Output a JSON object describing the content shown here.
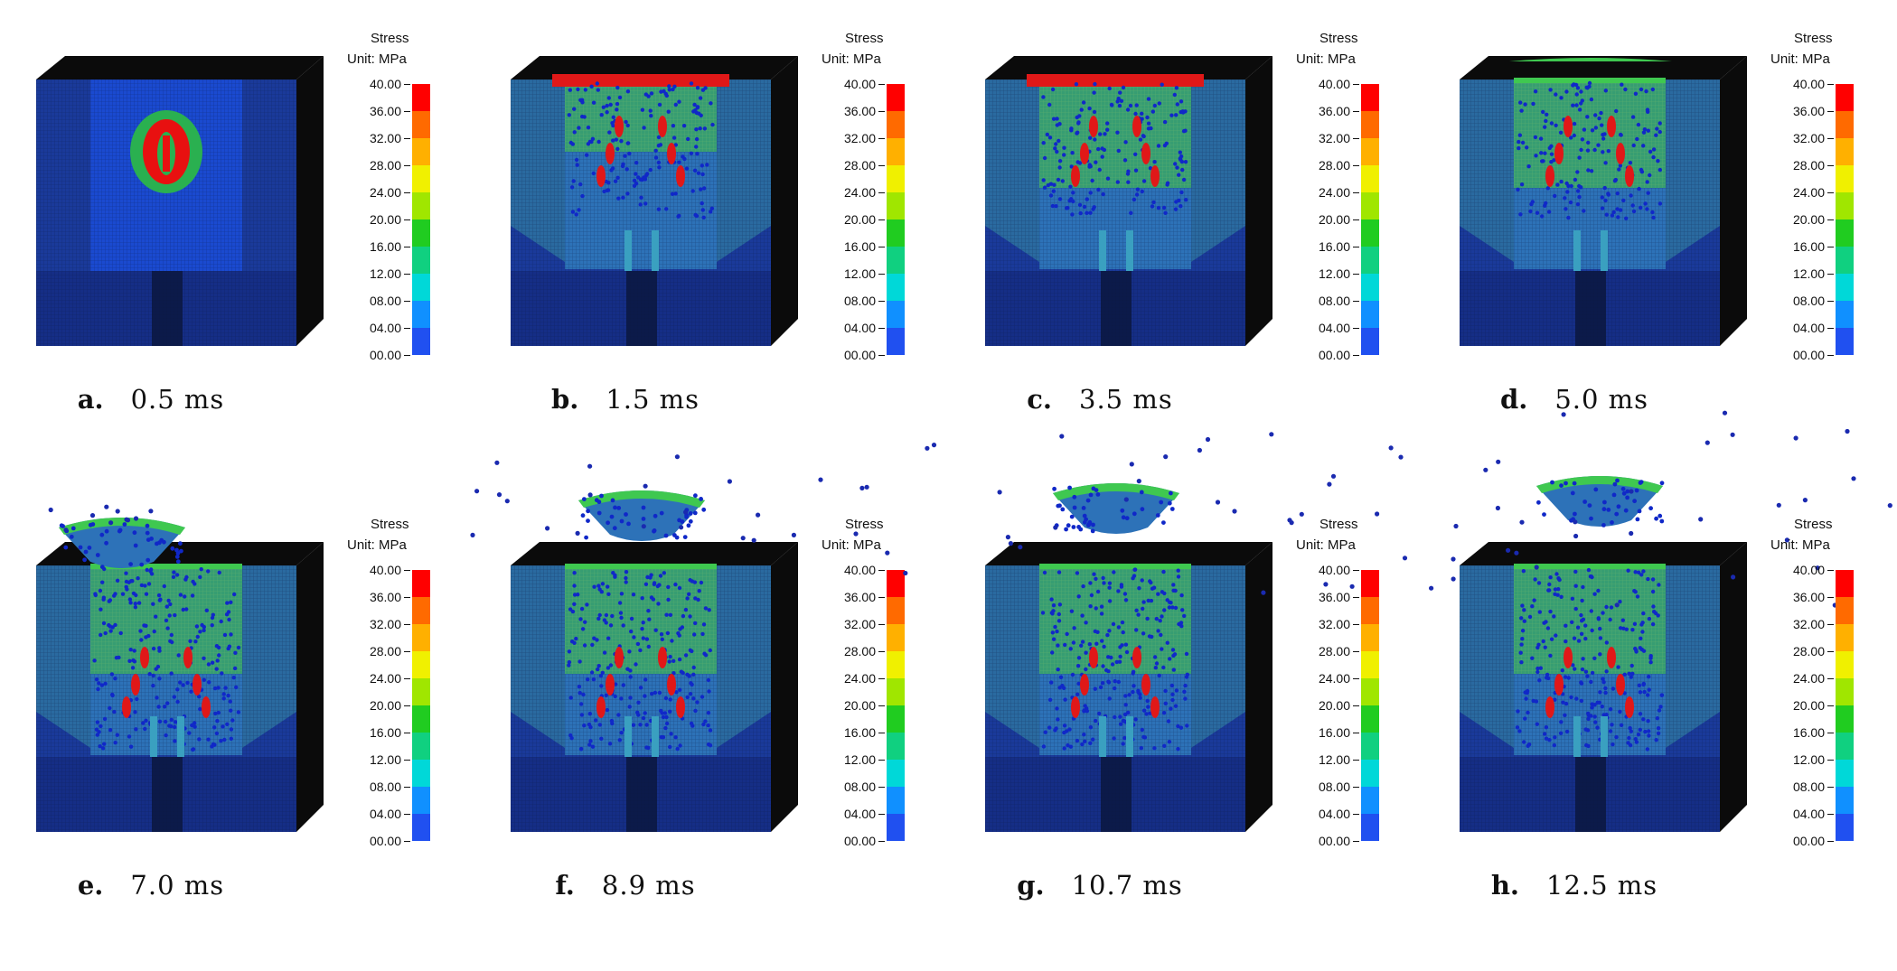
{
  "legend": {
    "title": "Stress",
    "unit": "Unit: MPa",
    "ticks": [
      "40.00",
      "36.00",
      "32.00",
      "28.00",
      "24.00",
      "20.00",
      "16.00",
      "12.00",
      "08.00",
      "04.00",
      "00.00"
    ],
    "colors": [
      "#ff0000",
      "#ff6a00",
      "#ffb000",
      "#f0f000",
      "#a0e600",
      "#20cc20",
      "#10d080",
      "#00d8d8",
      "#1090ff",
      "#2050f0",
      "#0000ff"
    ]
  },
  "panels": [
    {
      "label": "a.",
      "time": "0.5 ms",
      "stage": 0
    },
    {
      "label": "b.",
      "time": "1.5 ms",
      "stage": 1
    },
    {
      "label": "c.",
      "time": "3.5 ms",
      "stage": 2
    },
    {
      "label": "d.",
      "time": "5.0 ms",
      "stage": 3
    },
    {
      "label": "e.",
      "time": "7.0 ms",
      "stage": 4
    },
    {
      "label": "f.",
      "time": "8.9 ms",
      "stage": 5
    },
    {
      "label": "g.",
      "time": "10.7 ms",
      "stage": 6
    },
    {
      "label": "h.",
      "time": "12.5 ms",
      "stage": 7
    }
  ]
}
